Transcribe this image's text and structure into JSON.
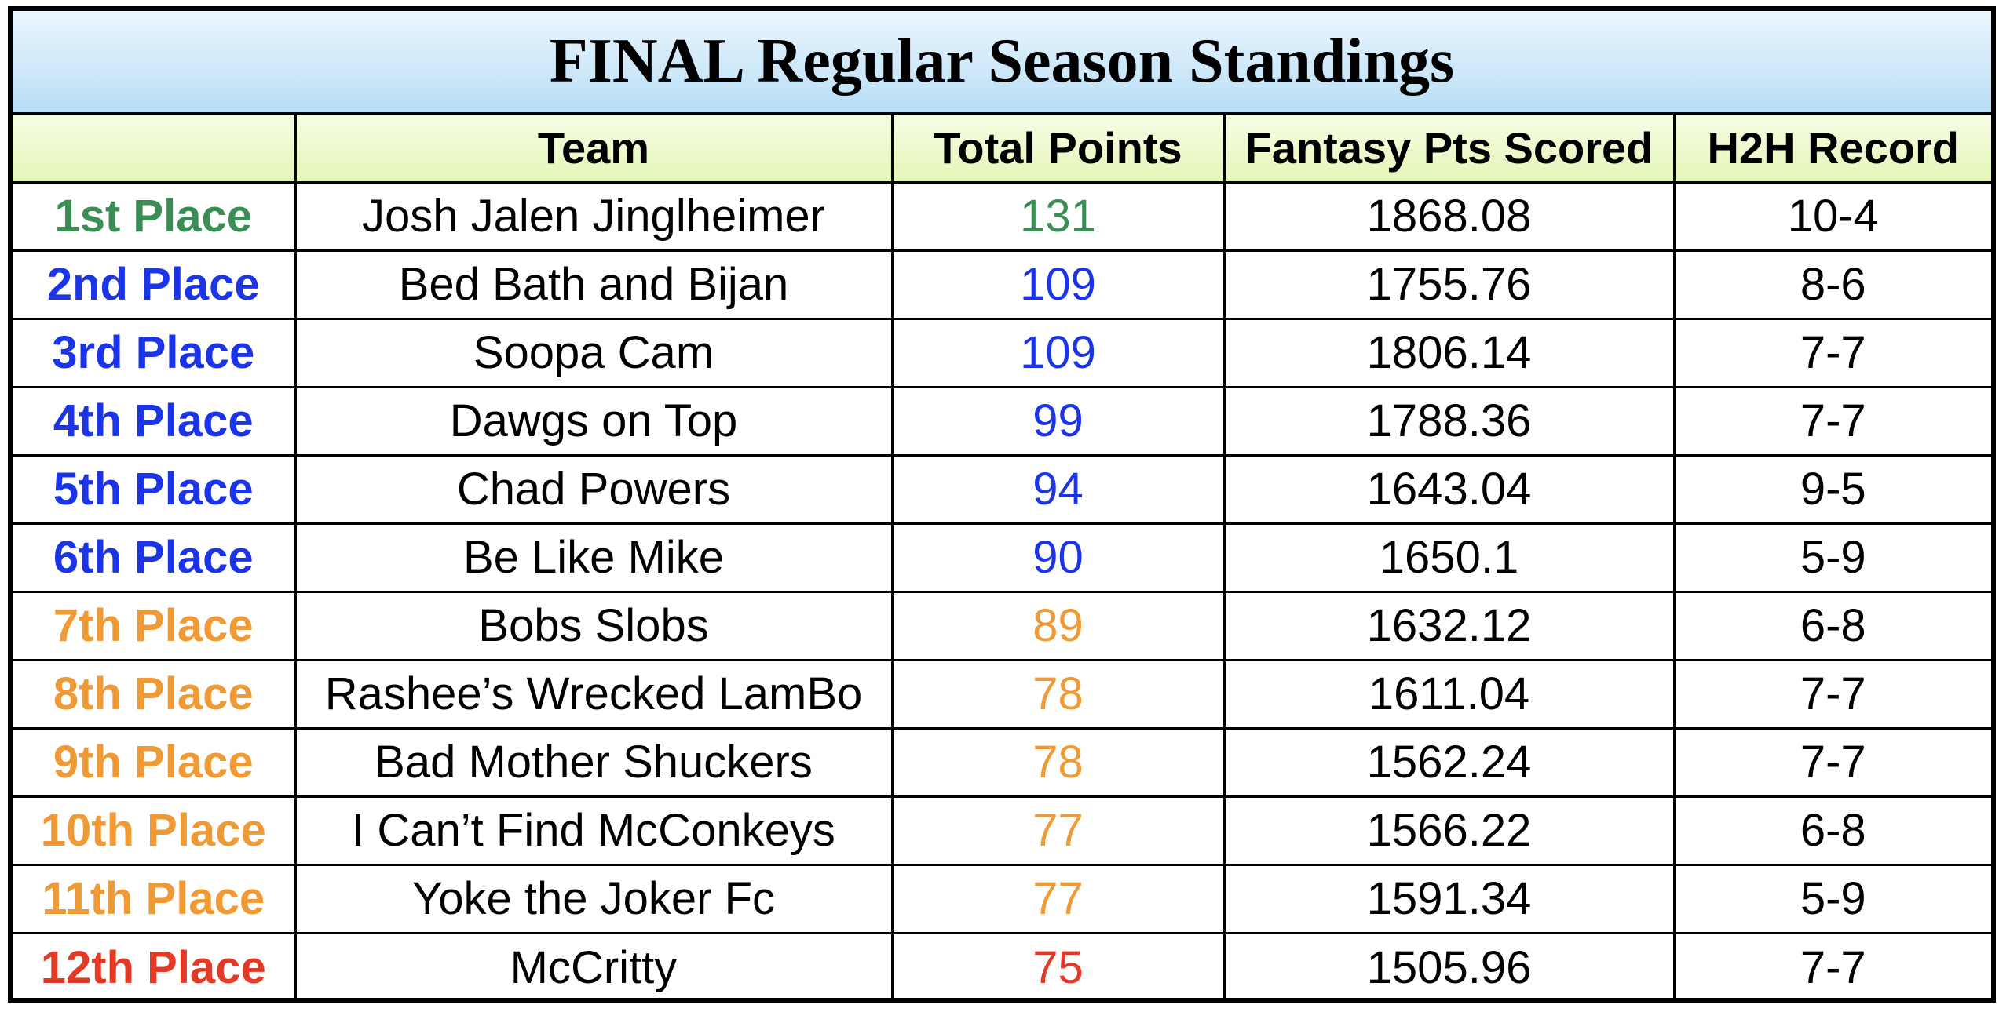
{
  "title": "FINAL Regular Season Standings",
  "headers": {
    "place": "",
    "team": "Team",
    "total_points": "Total Points",
    "fantasy_pts": "Fantasy Pts Scored",
    "record": "H2H Record"
  },
  "colors": {
    "first": "#3a8d55",
    "playoff": "#1c34e8",
    "middle": "#ef9a34",
    "last": "#e33a28",
    "title_gradient_top": "#eaf6fd",
    "title_gradient_bottom": "#b9def6",
    "header_gradient_top": "#f6fde4",
    "header_gradient_bottom": "#e4f6b8"
  },
  "rows": [
    {
      "place": "1st Place",
      "team": "Josh Jalen Jinglheimer",
      "total_points": "131",
      "fantasy_pts": "1868.08",
      "record": "10-4",
      "color": "#3a8d55"
    },
    {
      "place": "2nd Place",
      "team": "Bed Bath and Bijan",
      "total_points": "109",
      "fantasy_pts": "1755.76",
      "record": "8-6",
      "color": "#1c34e8"
    },
    {
      "place": "3rd Place",
      "team": "Soopa Cam",
      "total_points": "109",
      "fantasy_pts": "1806.14",
      "record": "7-7",
      "color": "#1c34e8"
    },
    {
      "place": "4th Place",
      "team": "Dawgs on Top",
      "total_points": "99",
      "fantasy_pts": "1788.36",
      "record": "7-7",
      "color": "#1c34e8"
    },
    {
      "place": "5th Place",
      "team": "Chad Powers",
      "total_points": "94",
      "fantasy_pts": "1643.04",
      "record": "9-5",
      "color": "#1c34e8"
    },
    {
      "place": "6th Place",
      "team": "Be Like Mike",
      "total_points": "90",
      "fantasy_pts": "1650.1",
      "record": "5-9",
      "color": "#1c34e8"
    },
    {
      "place": "7th Place",
      "team": "Bobs Slobs",
      "total_points": "89",
      "fantasy_pts": "1632.12",
      "record": "6-8",
      "color": "#ef9a34"
    },
    {
      "place": "8th Place",
      "team": "Rashee’s Wrecked LamBo",
      "total_points": "78",
      "fantasy_pts": "1611.04",
      "record": "7-7",
      "color": "#ef9a34"
    },
    {
      "place": "9th Place",
      "team": "Bad Mother Shuckers",
      "total_points": "78",
      "fantasy_pts": "1562.24",
      "record": "7-7",
      "color": "#ef9a34"
    },
    {
      "place": "10th Place",
      "team": "I Can’t Find McConkeys",
      "total_points": "77",
      "fantasy_pts": "1566.22",
      "record": "6-8",
      "color": "#ef9a34"
    },
    {
      "place": "11th Place",
      "team": "Yoke the Joker Fc",
      "total_points": "77",
      "fantasy_pts": "1591.34",
      "record": "5-9",
      "color": "#ef9a34"
    },
    {
      "place": "12th Place",
      "team": "McCritty",
      "total_points": "75",
      "fantasy_pts": "1505.96",
      "record": "7-7",
      "color": "#e33a28"
    }
  ]
}
